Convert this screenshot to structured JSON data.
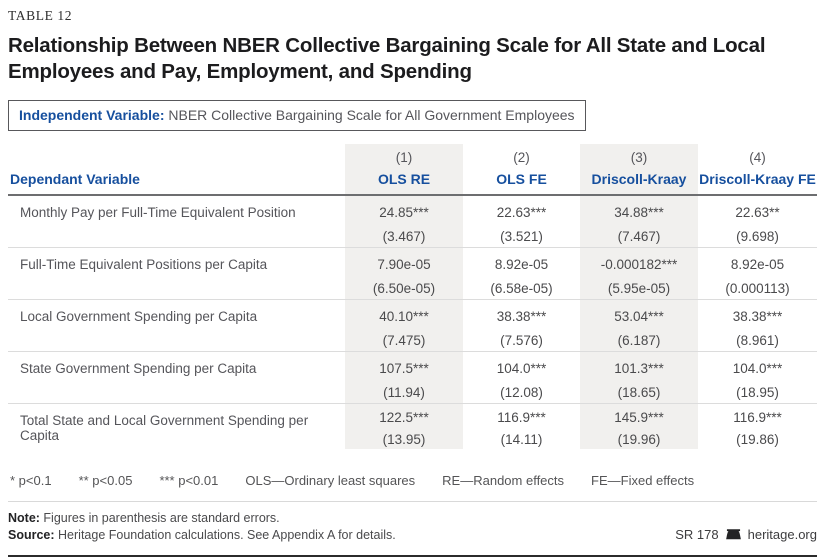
{
  "table_tag": "TABLE 12",
  "title": "Relationship Between NBER Collective Bargaining Scale for All State and Local Employees and Pay, Employment, and Spending",
  "independent_variable": {
    "label": "Independent Variable:",
    "value": " NBER Collective Bargaining Scale for All Government Employees"
  },
  "colors": {
    "accent_blue": "#164f9e",
    "stripe_gray": "#f1f0ee",
    "header_rule": "#6d6e70",
    "row_divider": "#dcdcdc"
  },
  "table": {
    "dependent_header": "Dependant Variable",
    "columns": [
      {
        "number": "(1)",
        "label": "OLS RE"
      },
      {
        "number": "(2)",
        "label": "OLS FE"
      },
      {
        "number": "(3)",
        "label": "Driscoll-Kraay"
      },
      {
        "number": "(4)",
        "label": "Driscoll-Kraay FE"
      }
    ],
    "rows": [
      {
        "label": "Monthly Pay per Full-Time Equivalent Position",
        "cells": [
          {
            "coef": "24.85***",
            "se": "(3.467)"
          },
          {
            "coef": "22.63***",
            "se": "(3.521)"
          },
          {
            "coef": "34.88***",
            "se": "(7.467)"
          },
          {
            "coef": "22.63**",
            "se": "(9.698)"
          }
        ]
      },
      {
        "label": "Full-Time Equivalent Positions per Capita",
        "cells": [
          {
            "coef": "7.90e-05",
            "se": "(6.50e-05)"
          },
          {
            "coef": "8.92e-05",
            "se": "(6.58e-05)"
          },
          {
            "coef": "-0.000182***",
            "se": "(5.95e-05)"
          },
          {
            "coef": "8.92e-05",
            "se": "(0.000113)"
          }
        ]
      },
      {
        "label": "Local Government Spending per Capita",
        "cells": [
          {
            "coef": "40.10***",
            "se": "(7.475)"
          },
          {
            "coef": "38.38***",
            "se": "(7.576)"
          },
          {
            "coef": "53.04***",
            "se": "(6.187)"
          },
          {
            "coef": "38.38***",
            "se": "(8.961)"
          }
        ]
      },
      {
        "label": "State Government Spending per Capita",
        "cells": [
          {
            "coef": "107.5***",
            "se": "(11.94)"
          },
          {
            "coef": "104.0***",
            "se": "(12.08)"
          },
          {
            "coef": "101.3***",
            "se": "(18.65)"
          },
          {
            "coef": "104.0***",
            "se": "(18.95)"
          }
        ]
      },
      {
        "label": "Total State and Local Government Spending per Capita",
        "cells": [
          {
            "coef": "122.5***",
            "se": "(13.95)"
          },
          {
            "coef": "116.9***",
            "se": "(14.11)"
          },
          {
            "coef": "145.9***",
            "se": "(19.96)"
          },
          {
            "coef": "116.9***",
            "se": "(19.86)"
          }
        ]
      }
    ]
  },
  "legend": {
    "items": [
      "* p<0.1",
      "** p<0.05",
      "*** p<0.01",
      "OLS—Ordinary least squares",
      "RE—Random effects",
      "FE—Fixed effects"
    ]
  },
  "notes": {
    "note_label": "Note:",
    "note_text": " Figures in parenthesis are standard errors.",
    "source_label": "Source:",
    "source_text": " Heritage Foundation calculations. See Appendix A for details."
  },
  "footer": {
    "report_id": "SR 178",
    "site": "heritage.org",
    "logo": "liberty-bell-icon"
  }
}
